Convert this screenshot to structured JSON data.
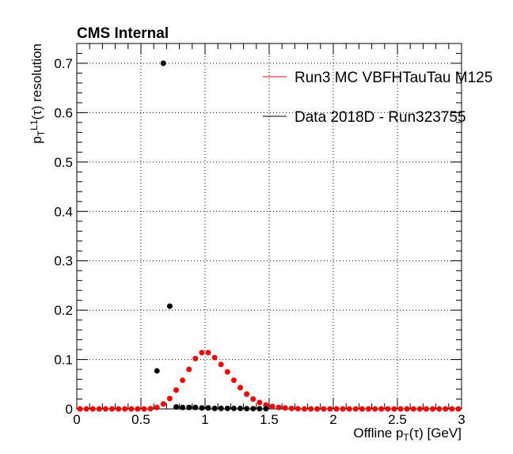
{
  "chart_data": {
    "type": "scatter",
    "title": "CMS Internal",
    "xlabel": "Offline p_T(τ) [GeV]",
    "ylabel": "p_T^L1(τ) resolution",
    "xlim": [
      0,
      3
    ],
    "ylim": [
      0,
      0.74
    ],
    "x_ticks": [
      "0",
      "0.5",
      "1",
      "1.5",
      "2",
      "2.5",
      "3"
    ],
    "y_ticks": [
      "0",
      "0.1",
      "0.2",
      "0.3",
      "0.4",
      "0.5",
      "0.6",
      "0.7"
    ],
    "x_tick_values": [
      0,
      0.5,
      1,
      1.5,
      2,
      2.5,
      3
    ],
    "y_tick_values": [
      0,
      0.1,
      0.2,
      0.3,
      0.4,
      0.5,
      0.6,
      0.7
    ],
    "grid": true,
    "legend_position": "top-right",
    "series": [
      {
        "name": "Run3 MC VBFHTauTau M125",
        "color": "#ff0000",
        "x": [
          0.025,
          0.075,
          0.125,
          0.175,
          0.225,
          0.275,
          0.325,
          0.375,
          0.425,
          0.475,
          0.525,
          0.575,
          0.625,
          0.675,
          0.725,
          0.775,
          0.825,
          0.875,
          0.925,
          0.975,
          1.025,
          1.075,
          1.125,
          1.175,
          1.225,
          1.275,
          1.325,
          1.375,
          1.425,
          1.475,
          1.525,
          1.575,
          1.625,
          1.675,
          1.725,
          1.775,
          1.825,
          1.875,
          1.925,
          1.975,
          2.025,
          2.075,
          2.125,
          2.175,
          2.225,
          2.275,
          2.325,
          2.375,
          2.425,
          2.475,
          2.525,
          2.575,
          2.625,
          2.675,
          2.725,
          2.775,
          2.825,
          2.875,
          2.925,
          2.975
        ],
        "y": [
          0,
          0,
          0,
          0,
          0,
          0,
          0,
          0,
          0,
          0,
          0,
          0.0005,
          0.003,
          0.01,
          0.021,
          0.038,
          0.058,
          0.08,
          0.102,
          0.114,
          0.114,
          0.104,
          0.09,
          0.075,
          0.058,
          0.043,
          0.03,
          0.02,
          0.013,
          0.008,
          0.005,
          0.003,
          0.002,
          0.001,
          0.0005,
          0,
          0,
          0,
          0,
          0,
          0,
          0,
          0,
          0,
          0,
          0,
          0,
          0,
          0,
          0,
          0,
          0,
          0,
          0,
          0,
          0,
          0,
          0,
          0,
          0
        ]
      },
      {
        "name": "Data 2018D - Run323755",
        "color": "#000000",
        "x": [
          0.625,
          0.675,
          0.725,
          0.775,
          0.825,
          0.875,
          0.925,
          0.975,
          1.025,
          1.075,
          1.125,
          1.175,
          1.225,
          1.275,
          1.325,
          1.375,
          1.425,
          1.475
        ],
        "y": [
          0.077,
          0.7,
          0.208,
          0.004,
          0.003,
          0.003,
          0.003,
          0.002,
          0.002,
          0.001,
          0.001,
          0.001,
          0.001,
          0.001,
          0.0005,
          0.0005,
          0.0005,
          0.0005
        ]
      }
    ]
  }
}
